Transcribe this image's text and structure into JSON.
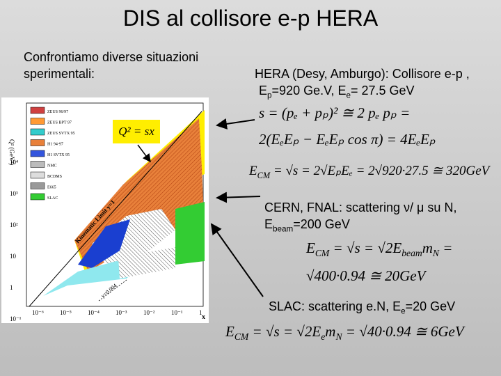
{
  "title": "DIS al collisore  e-p HERA",
  "intro": "Confrontiamo diverse situazioni sperimentali:",
  "hera": {
    "heading": "HERA (Desy, Amburgo): Collisore e-p ,",
    "energies": [
      "E",
      "p",
      "=920 Ge.V, E",
      "e",
      "= 27.5 GeV"
    ],
    "eq1": "s = (pₑ + pₚ)² ≅ 2 pₑ pₚ =",
    "eq2": "2(EₑEₚ − EₑEₚ cos π) = 4EₑEₚ",
    "eq3": [
      "E",
      "CM",
      " = √s = 2√EₚEₑ = 2√920·27.5 ≅ 320GeV"
    ]
  },
  "cern": {
    "heading": "CERN, FNAL: scattering ν/ μ su N,",
    "energies": [
      "E",
      "beam",
      "=200 GeV"
    ],
    "eq4": [
      "E",
      "CM",
      " = √s = √2E",
      "beam",
      "m",
      "N",
      " ="
    ],
    "eq5": "√400·0.94 ≅ 20GeV"
  },
  "slac": {
    "heading": [
      "SLAC: scattering e.N, E",
      "e",
      "=20 GeV"
    ],
    "eq6": [
      "E",
      "CM",
      " = √s = √2E",
      "e",
      "m",
      "N",
      " = √40·0.94 ≅ 6GeV"
    ]
  },
  "figure": {
    "y_label": "Q² (GeV²)",
    "x_label": "x",
    "yticks": [
      "10⁴",
      "10³",
      "10²",
      "10",
      "1",
      "10⁻¹"
    ],
    "xticks": [
      "10⁻⁶",
      "10⁻⁵",
      "10⁻⁴",
      "10⁻³",
      "10⁻²",
      "10⁻¹",
      "1"
    ],
    "legend": [
      "ZEUS 96/97",
      "ZEUS BPT 97",
      "ZEUS SVTX 95",
      "H1 94-97",
      "H1 SVTX 95",
      "NMC",
      "BCDMS",
      "E665",
      "SLAC"
    ],
    "formula": "Q² = sx",
    "limit": "Kinematic Limit y=1",
    "ycut": "y=0.004"
  }
}
